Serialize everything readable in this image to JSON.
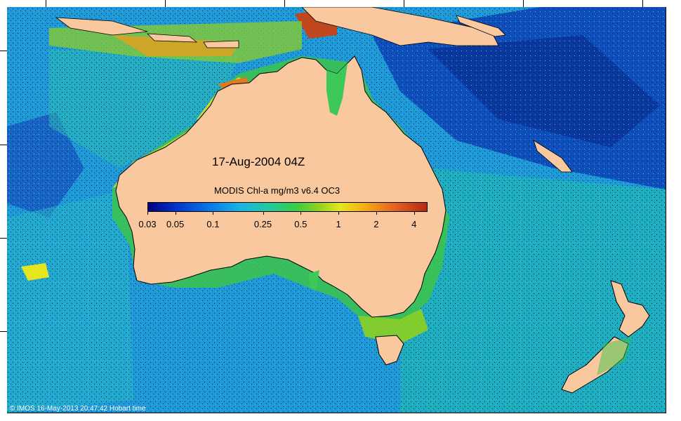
{
  "map": {
    "date_label": "17-Aug-2004 04Z",
    "colorbar": {
      "title": "MODIS Chl-a mg/m3 v6.4 OC3",
      "ticks": [
        "0.03",
        "0.05",
        "0.1",
        "0.25",
        "0.5",
        "1",
        "2",
        "4"
      ],
      "tick_values": [
        0.03,
        0.05,
        0.1,
        0.25,
        0.5,
        1,
        2,
        4
      ],
      "range": [
        0.03,
        5
      ]
    },
    "credit": "© IMOS 16-May-2013 20:47:42 Hobart time"
  },
  "colors": {
    "land": "#f9c89e",
    "ocean_open": "#1f9ad6",
    "ocean_deep": "#0b3fb0",
    "shelf": "#3fc85a",
    "high_chl": "#e6e61e",
    "very_high_chl": "#b42814"
  }
}
